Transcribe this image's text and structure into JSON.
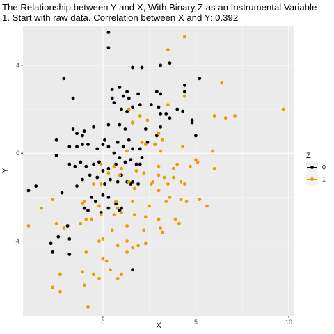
{
  "chart_data": {
    "type": "scatter",
    "title": "The Relationship between Y and X, With Binary Z as an Instrumental Variable",
    "subtitle": "1. Start with raw data. Correlation between X and Y: 0.392",
    "xlabel": "X",
    "ylabel": "Y",
    "xlim": [
      -4.3,
      10.3
    ],
    "ylim": [
      -7.4,
      5.8
    ],
    "x_ticks": [
      0,
      5,
      10
    ],
    "y_ticks": [
      -4,
      0,
      4
    ],
    "grid": true,
    "legend": {
      "title": "Z",
      "position": "right",
      "entries": [
        "0",
        "1"
      ]
    },
    "colors": {
      "0": "#000000",
      "1": "#E69F00",
      "panel": "#EBEBEB",
      "grid": "#FFFFFF"
    },
    "series": [
      {
        "name": "0",
        "points": [
          [
            0.3,
            5.5
          ],
          [
            0.3,
            4.8
          ],
          [
            -2.1,
            3.4
          ],
          [
            -1.6,
            2.5
          ],
          [
            1.6,
            3.9
          ],
          [
            2.1,
            3.9
          ],
          [
            3.1,
            4.0
          ],
          [
            3.6,
            4.1
          ],
          [
            0.5,
            2.9
          ],
          [
            0.9,
            3.0
          ],
          [
            1.1,
            2.6
          ],
          [
            1.3,
            2.8
          ],
          [
            1.4,
            2.5
          ],
          [
            1.9,
            2.7
          ],
          [
            2.9,
            2.8
          ],
          [
            3.1,
            2.7
          ],
          [
            4.4,
            3.1
          ],
          [
            4.4,
            2.8
          ],
          [
            5.2,
            3.4
          ],
          [
            0.5,
            2.5
          ],
          [
            0.6,
            2.3
          ],
          [
            1.0,
            2.0
          ],
          [
            1.3,
            1.9
          ],
          [
            1.6,
            2.1
          ],
          [
            2.0,
            2.2
          ],
          [
            2.6,
            2.2
          ],
          [
            3.0,
            2.1
          ],
          [
            3.1,
            1.8
          ],
          [
            3.4,
            1.8
          ],
          [
            3.6,
            1.6
          ],
          [
            4.0,
            2.0
          ],
          [
            4.3,
            1.9
          ],
          [
            4.8,
            1.4
          ],
          [
            4.8,
            1.5
          ],
          [
            5.0,
            0.8
          ],
          [
            -1.6,
            1.1
          ],
          [
            -1.4,
            0.9
          ],
          [
            -1.1,
            0.8
          ],
          [
            -1.0,
            1.0
          ],
          [
            -0.5,
            1.2
          ],
          [
            0.3,
            1.3
          ],
          [
            0.9,
            1.3
          ],
          [
            1.2,
            1.1
          ],
          [
            1.6,
            1.4
          ],
          [
            2.3,
            1.1
          ],
          [
            2.9,
            0.8
          ],
          [
            3.1,
            1.2
          ],
          [
            -2.5,
            0.6
          ],
          [
            -1.8,
            0.3
          ],
          [
            -1.4,
            0.3
          ],
          [
            -1.1,
            0.4
          ],
          [
            -0.8,
            0.4
          ],
          [
            -0.3,
            0.2
          ],
          [
            0.0,
            0.4
          ],
          [
            0.1,
            0.6
          ],
          [
            0.3,
            0.3
          ],
          [
            0.6,
            0.0
          ],
          [
            0.8,
            0.5
          ],
          [
            1.1,
            0.3
          ],
          [
            1.4,
            0.6
          ],
          [
            1.6,
            0.2
          ],
          [
            2.0,
            0.2
          ],
          [
            2.4,
            0.5
          ],
          [
            2.8,
            0.4
          ],
          [
            -2.5,
            -0.1
          ],
          [
            -1.8,
            -0.5
          ],
          [
            -1.5,
            -0.6
          ],
          [
            -1.2,
            -0.4
          ],
          [
            -0.9,
            -0.6
          ],
          [
            -0.5,
            -0.5
          ],
          [
            -0.2,
            -0.4
          ],
          [
            0.0,
            -0.8
          ],
          [
            0.3,
            -0.7
          ],
          [
            0.7,
            -0.5
          ],
          [
            0.9,
            -0.2
          ],
          [
            1.2,
            -0.4
          ],
          [
            1.5,
            -0.3
          ],
          [
            1.8,
            -0.5
          ],
          [
            2.1,
            -0.2
          ],
          [
            -2.2,
            -1.8
          ],
          [
            -1.4,
            -1.5
          ],
          [
            -1.1,
            -1.2
          ],
          [
            -0.7,
            -1.0
          ],
          [
            -0.3,
            -1.1
          ],
          [
            0.1,
            -1.4
          ],
          [
            0.4,
            -1.2
          ],
          [
            0.8,
            -1.3
          ],
          [
            1.0,
            -1.0
          ],
          [
            1.3,
            -1.3
          ],
          [
            1.6,
            -1.3
          ],
          [
            1.9,
            -1.4
          ],
          [
            -4.0,
            -1.7
          ],
          [
            -3.6,
            -1.5
          ],
          [
            -0.6,
            -2.0
          ],
          [
            -0.4,
            -2.2
          ],
          [
            0.0,
            -1.9
          ],
          [
            0.3,
            -2.0
          ],
          [
            0.7,
            -2.3
          ],
          [
            1.0,
            -2.5
          ],
          [
            -1.0,
            -2.5
          ],
          [
            -0.8,
            -2.6
          ],
          [
            -0.1,
            -2.7
          ],
          [
            0.3,
            -2.5
          ],
          [
            0.9,
            -2.6
          ],
          [
            -1.9,
            -3.3
          ],
          [
            -1.8,
            -3.9
          ],
          [
            -2.4,
            -3.8
          ],
          [
            -1.8,
            -4.6
          ],
          [
            -2.8,
            -4.1
          ],
          [
            -2.7,
            -4.5
          ],
          [
            1.6,
            -5.3
          ],
          [
            1.5,
            -1.4
          ],
          [
            2.0,
            -0.5
          ]
        ]
      },
      {
        "name": "1",
        "points": [
          [
            4.4,
            5.3
          ],
          [
            3.5,
            4.7
          ],
          [
            6.4,
            3.2
          ],
          [
            9.7,
            2.0
          ],
          [
            3.5,
            2.2
          ],
          [
            1.4,
            2.0
          ],
          [
            2.0,
            1.7
          ],
          [
            4.4,
            2.6
          ],
          [
            6.0,
            1.7
          ],
          [
            6.6,
            1.6
          ],
          [
            7.1,
            1.7
          ],
          [
            2.4,
            1.5
          ],
          [
            1.6,
            1.4
          ],
          [
            3.0,
            0.9
          ],
          [
            3.2,
            0.6
          ],
          [
            2.1,
            0.5
          ],
          [
            2.3,
            0.4
          ],
          [
            2.8,
            0.4
          ],
          [
            4.3,
            0.3
          ],
          [
            1.3,
            0.1
          ],
          [
            3.1,
            0.1
          ],
          [
            5.9,
            0.1
          ],
          [
            5.0,
            -0.3
          ],
          [
            5.1,
            -0.4
          ],
          [
            -0.1,
            -0.5
          ],
          [
            0.6,
            -0.6
          ],
          [
            1.0,
            -0.7
          ],
          [
            1.8,
            -0.8
          ],
          [
            2.2,
            -0.9
          ],
          [
            3.0,
            -0.6
          ],
          [
            3.8,
            -0.7
          ],
          [
            4.0,
            -0.5
          ],
          [
            4.7,
            -0.6
          ],
          [
            6.0,
            -0.7
          ],
          [
            0.3,
            -0.9
          ],
          [
            0.9,
            -1.0
          ],
          [
            1.4,
            -1.3
          ],
          [
            2.7,
            -1.3
          ],
          [
            3.0,
            -1.0
          ],
          [
            3.3,
            -1.1
          ],
          [
            3.5,
            -1.4
          ],
          [
            3.8,
            -1.1
          ],
          [
            4.2,
            -1.3
          ],
          [
            -0.5,
            -1.4
          ],
          [
            -0.1,
            -1.4
          ],
          [
            1.7,
            -1.6
          ],
          [
            2.6,
            -1.4
          ],
          [
            3.0,
            -1.7
          ],
          [
            4.4,
            -1.4
          ],
          [
            -2.7,
            -2.1
          ],
          [
            -1.0,
            -2.2
          ],
          [
            0.7,
            -2.2
          ],
          [
            0.8,
            -2.5
          ],
          [
            1.6,
            -2.2
          ],
          [
            2.5,
            -2.4
          ],
          [
            3.4,
            -2.2
          ],
          [
            3.6,
            -2.0
          ],
          [
            4.2,
            -2.1
          ],
          [
            4.5,
            -2.2
          ],
          [
            5.2,
            -2.1
          ],
          [
            5.6,
            -2.4
          ],
          [
            -3.3,
            -2.5
          ],
          [
            -1.1,
            -2.3
          ],
          [
            -0.2,
            -2.4
          ],
          [
            -0.6,
            -3.0
          ],
          [
            -0.1,
            -2.8
          ],
          [
            0.6,
            -2.8
          ],
          [
            1.0,
            -2.7
          ],
          [
            1.7,
            -2.8
          ],
          [
            2.3,
            -2.9
          ],
          [
            3.0,
            -3.0
          ],
          [
            3.9,
            -3.0
          ],
          [
            -1.2,
            -3.2
          ],
          [
            -2.1,
            -3.4
          ],
          [
            -0.9,
            -3.0
          ],
          [
            0.5,
            -3.5
          ],
          [
            1.3,
            -3.3
          ],
          [
            2.2,
            -3.5
          ],
          [
            3.1,
            -3.4
          ],
          [
            3.2,
            -3.6
          ],
          [
            4.1,
            -3.2
          ],
          [
            -2.5,
            -3.2
          ],
          [
            -4.0,
            -3.3
          ],
          [
            0.0,
            -3.9
          ],
          [
            0.8,
            -4.2
          ],
          [
            1.3,
            -4.0
          ],
          [
            1.9,
            -4.2
          ],
          [
            2.3,
            -4.1
          ],
          [
            -0.2,
            -4.0
          ],
          [
            -0.9,
            -4.5
          ],
          [
            0.0,
            -4.8
          ],
          [
            0.2,
            -4.9
          ],
          [
            1.3,
            -4.5
          ],
          [
            1.6,
            -4.3
          ],
          [
            -2.3,
            -5.5
          ],
          [
            -1.1,
            -5.4
          ],
          [
            -0.5,
            -5.5
          ],
          [
            0.4,
            -5.3
          ],
          [
            0.8,
            -5.7
          ],
          [
            1.0,
            -5.5
          ],
          [
            -0.2,
            -5.7
          ],
          [
            -2.7,
            -6.1
          ],
          [
            -2.3,
            -6.3
          ],
          [
            -1.0,
            -6.0
          ],
          [
            -0.8,
            -7.0
          ]
        ]
      }
    ]
  }
}
